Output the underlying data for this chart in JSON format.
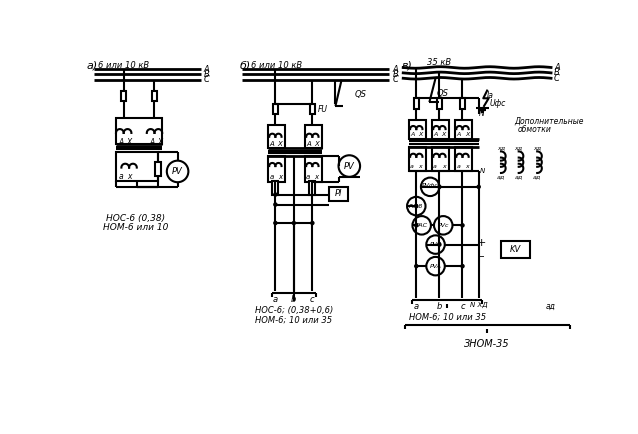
{
  "bg": "#ffffff",
  "lw_thin": 1.0,
  "lw_med": 1.5,
  "lw_thick": 2.0,
  "sec_a": {
    "label": "а)",
    "voltage": "6 или 10 кВ",
    "phases": [
      "A",
      "B",
      "C"
    ],
    "bottom": [
      "НОС-6 (0,38)",
      "НОМ-6 или 10"
    ]
  },
  "sec_b": {
    "label": "б)",
    "voltage": "6 или 10 кВ",
    "phases": [
      "A",
      "B",
      "C"
    ],
    "qs": "QS",
    "fu": "FU",
    "pv": "PV",
    "pi": "PI",
    "abc": [
      "a",
      "b",
      "c"
    ],
    "bottom": [
      "НОС-6; (0,38+0,6)",
      "НОМ-6; 10 или 35"
    ]
  },
  "sec_c": {
    "label": "в)",
    "voltage": "35 кВ",
    "phases": [
      "A",
      "B",
      "C"
    ],
    "qs": "QS",
    "n": "N",
    "ia": "Iа",
    "ufc": "Uфс",
    "dop1": "Дополнительные",
    "dop2": "обмотки",
    "kv": "KV",
    "abc": [
      "a",
      "b",
      "c"
    ],
    "nx": "N XД",
    "ad": "aд",
    "bottom1": "НОМ-6; 10 или 35",
    "bottom2": "ЗНОМ-35"
  }
}
